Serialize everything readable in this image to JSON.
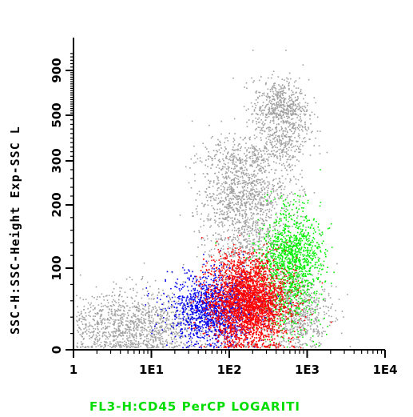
{
  "chart_data": {
    "type": "scatter",
    "title": "",
    "xlabel": "FL3-H:CD45 PerCP LOGARITI",
    "ylabel": "SSC-H:SSC-Height Exp-SSC L",
    "x_scale": "log",
    "xlim": [
      1,
      10000
    ],
    "x_ticks": [
      {
        "value": 1,
        "label": "1"
      },
      {
        "value": 10,
        "label": "1E1"
      },
      {
        "value": 100,
        "label": "1E2"
      },
      {
        "value": 1000,
        "label": "1E3"
      },
      {
        "value": 10000,
        "label": "1E4"
      }
    ],
    "ylim": [
      0,
      1023
    ],
    "y_ticks": [
      {
        "value": 0,
        "label": "0"
      },
      {
        "value": 100,
        "label": "100"
      },
      {
        "value": 200,
        "label": "200"
      },
      {
        "value": 300,
        "label": "300"
      },
      {
        "value": 500,
        "label": "500"
      },
      {
        "value": 900,
        "label": "900"
      }
    ],
    "grid": false,
    "legend": "none",
    "series": [
      {
        "color": "#a0a0a0",
        "clusters": [
          {
            "x_center": 5,
            "x_spread": 0.55,
            "y_center": 30,
            "y_spread": 22,
            "count": 1400
          },
          {
            "x_center": 150,
            "x_spread": 0.28,
            "y_center": 190,
            "y_spread": 90,
            "count": 1800
          },
          {
            "x_center": 450,
            "x_spread": 0.18,
            "y_center": 500,
            "y_spread": 160,
            "count": 900
          },
          {
            "x_center": 700,
            "x_spread": 0.22,
            "y_center": 50,
            "y_spread": 25,
            "count": 700
          }
        ]
      },
      {
        "color": "#00ee00",
        "clusters": [
          {
            "x_center": 600,
            "x_spread": 0.2,
            "y_center": 110,
            "y_spread": 40,
            "count": 1300
          }
        ]
      },
      {
        "color": "#0000ee",
        "clusters": [
          {
            "x_center": 60,
            "x_spread": 0.28,
            "y_center": 50,
            "y_spread": 22,
            "count": 1300
          }
        ]
      },
      {
        "color": "#ff0000",
        "clusters": [
          {
            "x_center": 170,
            "x_spread": 0.25,
            "y_center": 60,
            "y_spread": 28,
            "count": 3200
          }
        ]
      }
    ]
  }
}
